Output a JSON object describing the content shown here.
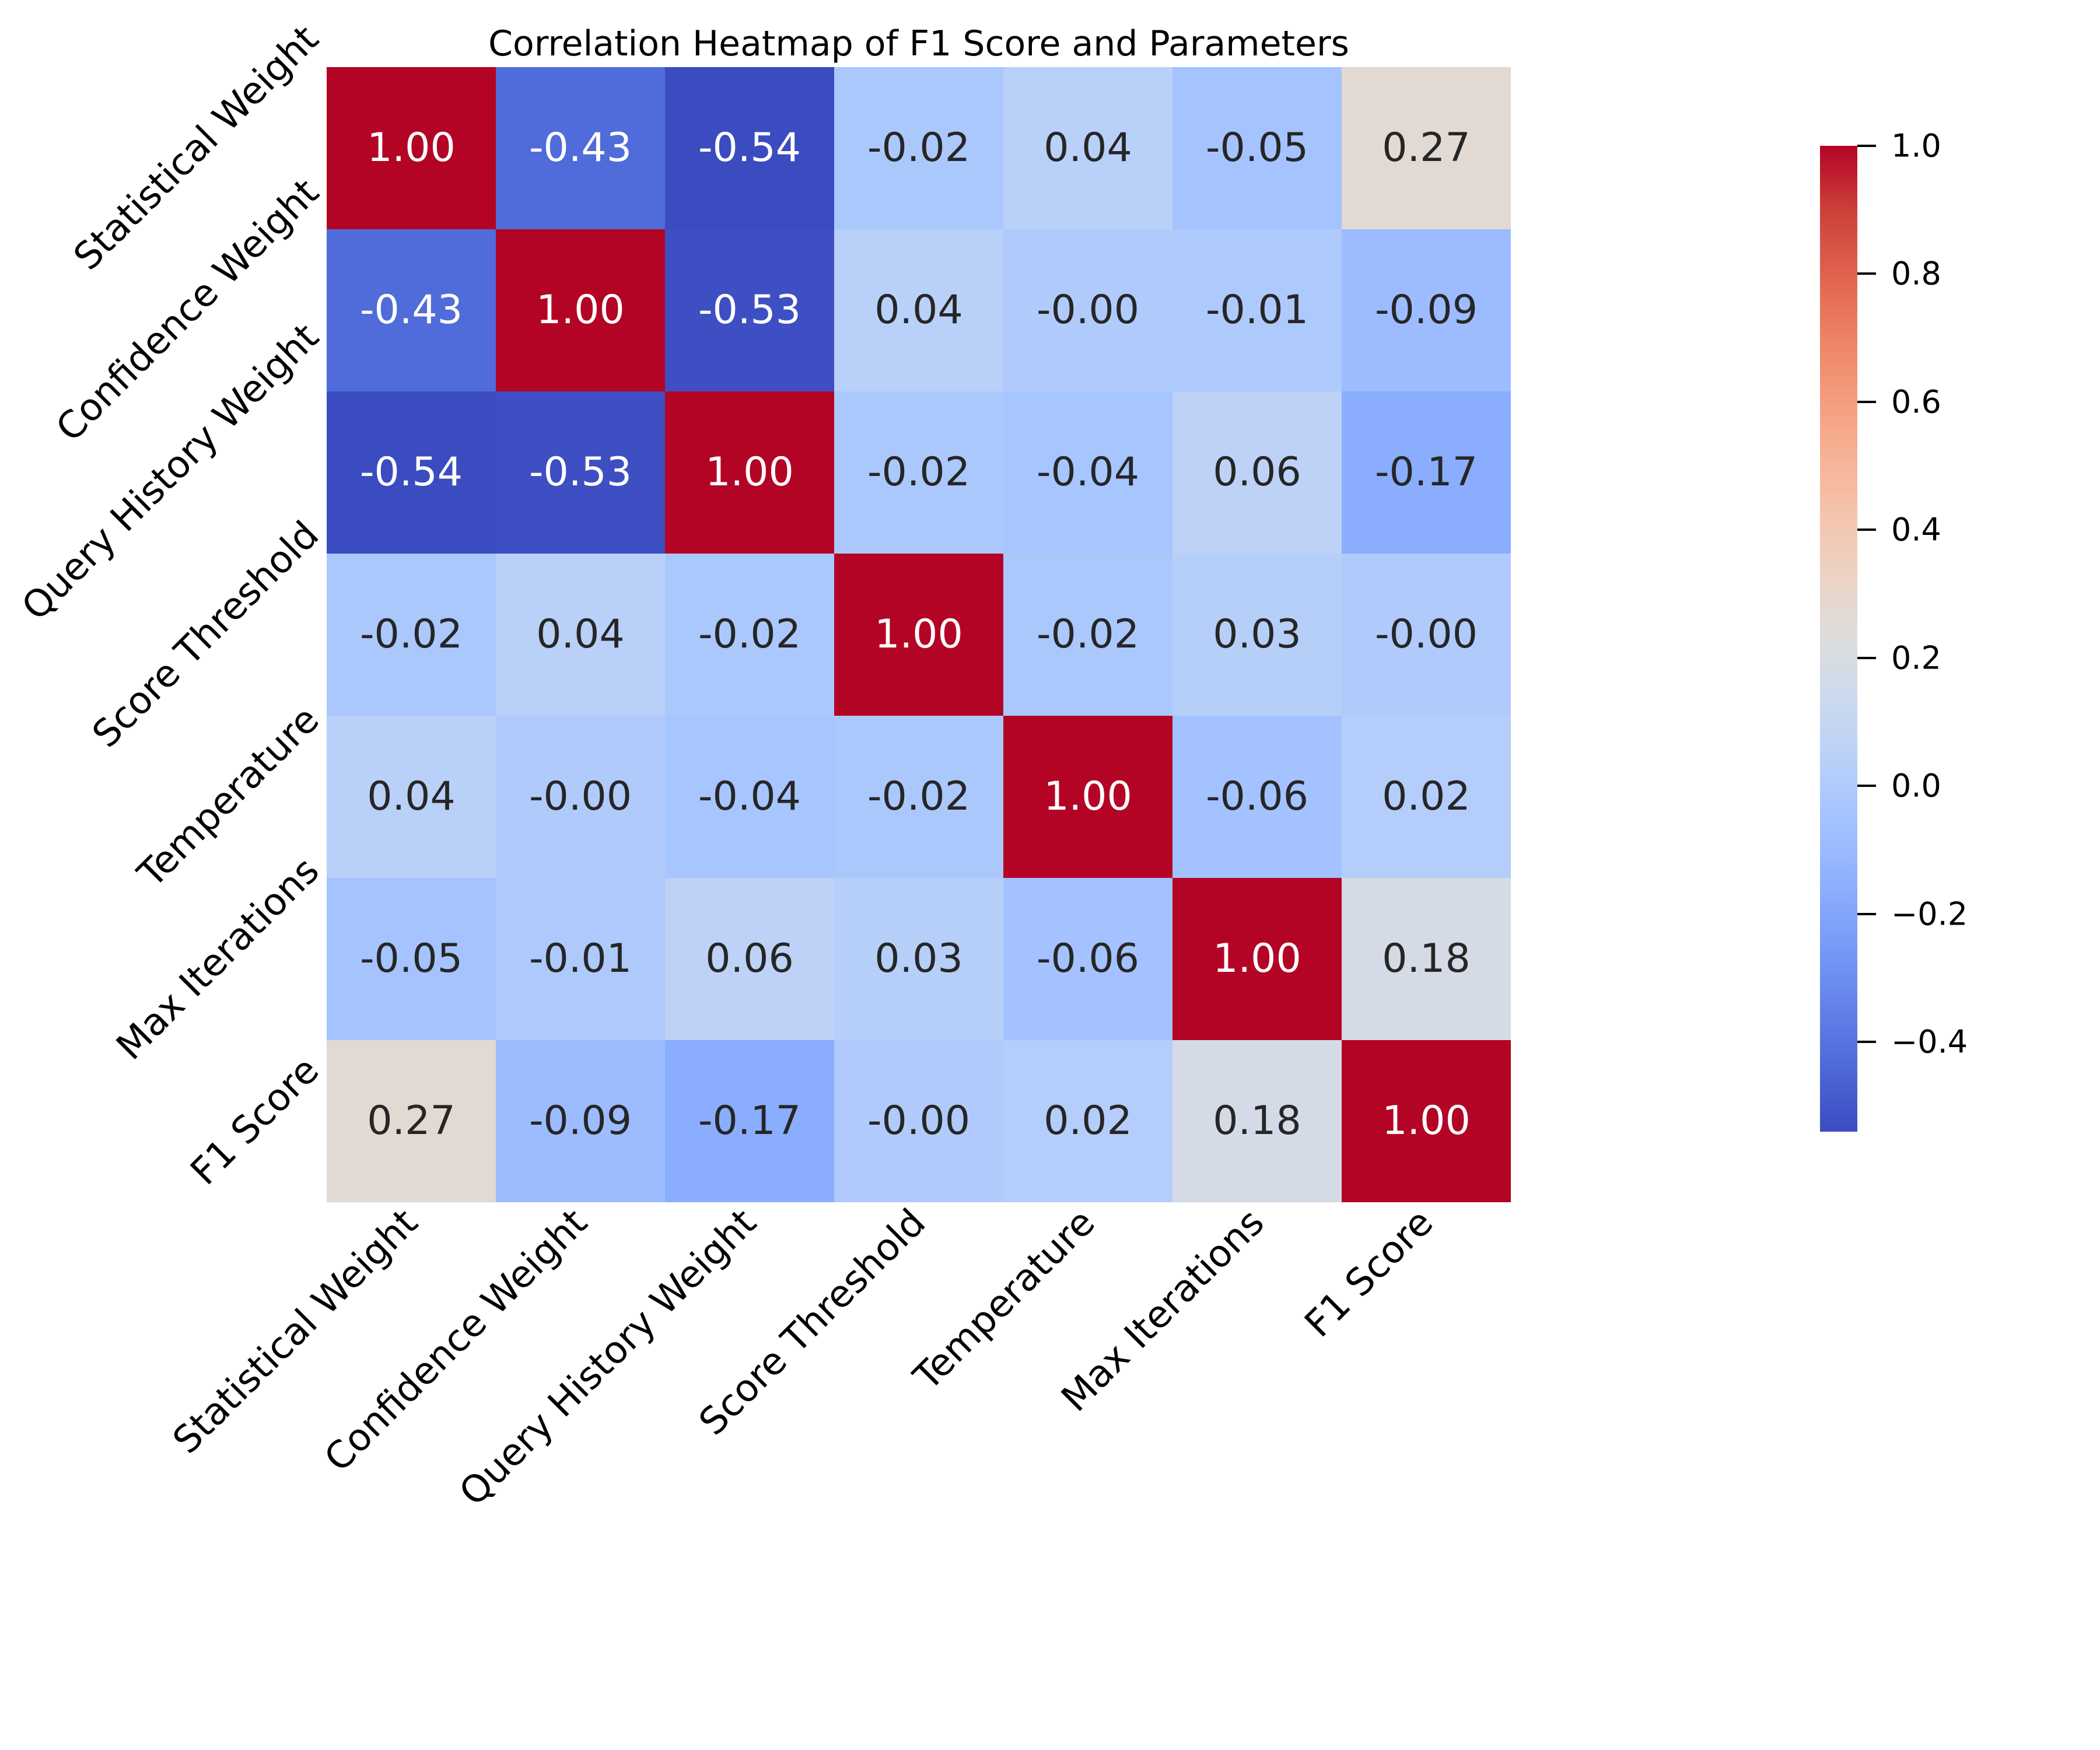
{
  "title": "Correlation Heatmap of F1 Score and Parameters",
  "chart_data": {
    "type": "heatmap",
    "categories": [
      "Statistical Weight",
      "Confidence Weight",
      "Query History Weight",
      "Score Threshold",
      "Temperature",
      "Max Iterations",
      "F1 Score"
    ],
    "matrix": [
      [
        1.0,
        -0.43,
        -0.54,
        -0.02,
        0.04,
        -0.05,
        0.27
      ],
      [
        -0.43,
        1.0,
        -0.53,
        0.04,
        -0.0,
        -0.01,
        -0.09
      ],
      [
        -0.54,
        -0.53,
        1.0,
        -0.02,
        -0.04,
        0.06,
        -0.17
      ],
      [
        -0.02,
        0.04,
        -0.02,
        1.0,
        -0.02,
        0.03,
        -0.0
      ],
      [
        0.04,
        -0.0,
        -0.04,
        -0.02,
        1.0,
        -0.06,
        0.02
      ],
      [
        -0.05,
        -0.01,
        0.06,
        0.03,
        -0.06,
        1.0,
        0.18
      ],
      [
        0.27,
        -0.09,
        -0.17,
        -0.0,
        0.02,
        0.18,
        1.0
      ]
    ],
    "cell_labels": [
      [
        "1.00",
        "-0.43",
        "-0.54",
        "-0.02",
        "0.04",
        "-0.05",
        "0.27"
      ],
      [
        "-0.43",
        "1.00",
        "-0.53",
        "0.04",
        "-0.00",
        "-0.01",
        "-0.09"
      ],
      [
        "-0.54",
        "-0.53",
        "1.00",
        "-0.02",
        "-0.04",
        "0.06",
        "-0.17"
      ],
      [
        "-0.02",
        "0.04",
        "-0.02",
        "1.00",
        "-0.02",
        "0.03",
        "-0.00"
      ],
      [
        "0.04",
        "-0.00",
        "-0.04",
        "-0.02",
        "1.00",
        "-0.06",
        "0.02"
      ],
      [
        "-0.05",
        "-0.01",
        "0.06",
        "0.03",
        "-0.06",
        "1.00",
        "0.18"
      ],
      [
        "0.27",
        "-0.09",
        "-0.17",
        "-0.00",
        "0.02",
        "0.18",
        "1.00"
      ]
    ],
    "colormap": "coolwarm",
    "vmin": -0.54,
    "vmax": 1.0,
    "grid": false,
    "annotations": true,
    "colorbar": {
      "position": "right",
      "tick_labels": [
        "1.0",
        "0.8",
        "0.6",
        "0.4",
        "0.2",
        "0.0",
        "−0.2",
        "−0.4"
      ],
      "tick_values": [
        1.0,
        0.8,
        0.6,
        0.4,
        0.2,
        0.0,
        -0.2,
        -0.4
      ]
    }
  },
  "colors": {
    "background": "#ffffff",
    "annot_dark": "#262626",
    "annot_light": "#ffffff",
    "axis_text": "#000000",
    "cmap_min_hex": "#3b4cc0",
    "cmap_mid_hex": "#dddddd",
    "cmap_max_hex": "#b40426"
  }
}
